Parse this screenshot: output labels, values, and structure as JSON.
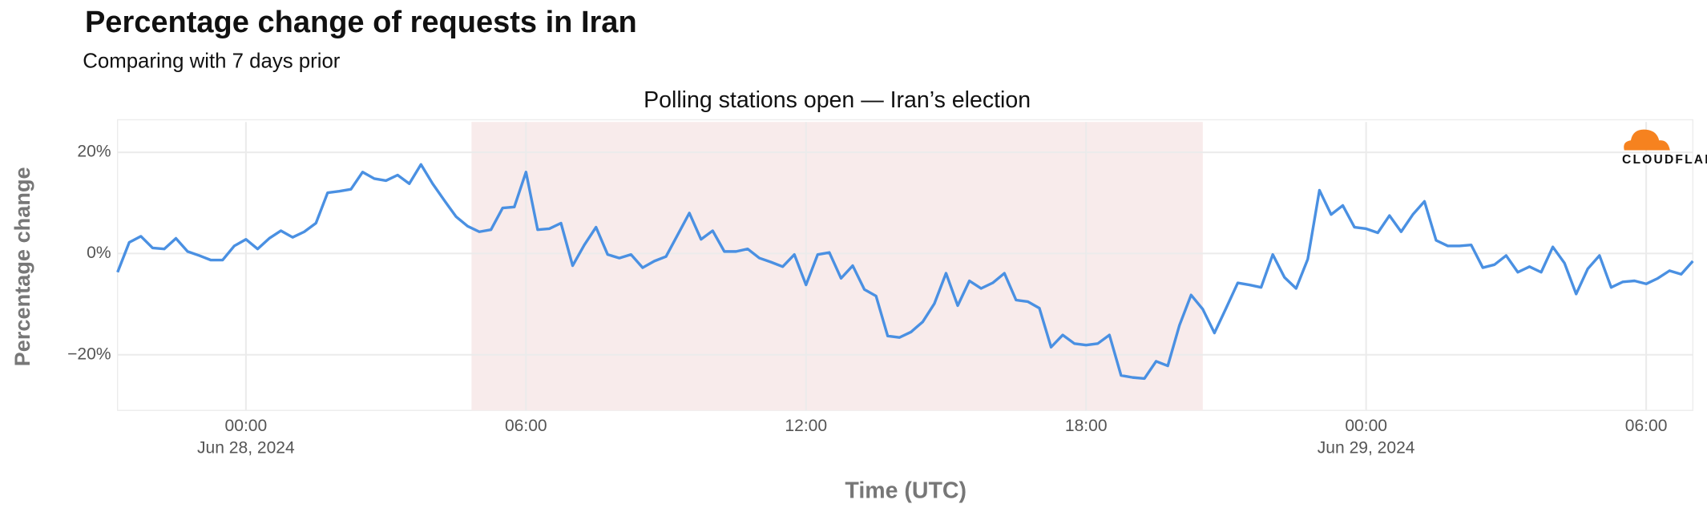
{
  "chart_data": {
    "type": "line",
    "title": "Percentage change of requests in Iran",
    "subtitle": "Comparing with 7 days prior",
    "ylabel": "Percentage change",
    "xlabel": "Time (UTC)",
    "logo": "CLOUDFLARE",
    "annotations": [
      {
        "text": "Polling stations open — Iran’s election",
        "x": [
          "2024-06-28T04:50",
          "2024-06-28T20:30"
        ],
        "color": "#f8ebeb"
      }
    ],
    "xlim": [
      "2024-06-27T21:15",
      "2024-06-29T07:00"
    ],
    "xticks": [
      {
        "value": "2024-06-28T00:00",
        "label": "00:00",
        "date": "Jun 28, 2024"
      },
      {
        "value": "2024-06-28T06:00",
        "label": "06:00"
      },
      {
        "value": "2024-06-28T12:00",
        "label": "12:00"
      },
      {
        "value": "2024-06-28T18:00",
        "label": "18:00"
      },
      {
        "value": "2024-06-29T00:00",
        "label": "00:00",
        "date": "Jun 29, 2024"
      },
      {
        "value": "2024-06-29T06:00",
        "label": "06:00"
      }
    ],
    "ylim": [
      -31,
      26
    ],
    "yticks": [
      {
        "value": -20,
        "label": "−20%"
      },
      {
        "value": 0,
        "label": "0%"
      },
      {
        "value": 20,
        "label": "20%"
      }
    ],
    "grid": true,
    "x": [
      "2024-06-27T21:15",
      "2024-06-27T21:30",
      "2024-06-27T21:45",
      "2024-06-27T22:00",
      "2024-06-27T22:15",
      "2024-06-27T22:30",
      "2024-06-27T22:45",
      "2024-06-27T23:00",
      "2024-06-27T23:15",
      "2024-06-27T23:30",
      "2024-06-27T23:45",
      "2024-06-28T00:00",
      "2024-06-28T00:15",
      "2024-06-28T00:30",
      "2024-06-28T00:45",
      "2024-06-28T01:00",
      "2024-06-28T01:15",
      "2024-06-28T01:30",
      "2024-06-28T01:45",
      "2024-06-28T02:00",
      "2024-06-28T02:15",
      "2024-06-28T02:30",
      "2024-06-28T02:45",
      "2024-06-28T03:00",
      "2024-06-28T03:15",
      "2024-06-28T03:30",
      "2024-06-28T03:45",
      "2024-06-28T04:00",
      "2024-06-28T04:15",
      "2024-06-28T04:30",
      "2024-06-28T04:45",
      "2024-06-28T05:00",
      "2024-06-28T05:15",
      "2024-06-28T05:30",
      "2024-06-28T05:45",
      "2024-06-28T06:00",
      "2024-06-28T06:15",
      "2024-06-28T06:30",
      "2024-06-28T06:45",
      "2024-06-28T07:00",
      "2024-06-28T07:15",
      "2024-06-28T07:30",
      "2024-06-28T07:45",
      "2024-06-28T08:00",
      "2024-06-28T08:15",
      "2024-06-28T08:30",
      "2024-06-28T08:45",
      "2024-06-28T09:00",
      "2024-06-28T09:15",
      "2024-06-28T09:30",
      "2024-06-28T09:45",
      "2024-06-28T10:00",
      "2024-06-28T10:15",
      "2024-06-28T10:30",
      "2024-06-28T10:45",
      "2024-06-28T11:00",
      "2024-06-28T11:15",
      "2024-06-28T11:30",
      "2024-06-28T11:45",
      "2024-06-28T12:00",
      "2024-06-28T12:15",
      "2024-06-28T12:30",
      "2024-06-28T12:45",
      "2024-06-28T13:00",
      "2024-06-28T13:15",
      "2024-06-28T13:30",
      "2024-06-28T13:45",
      "2024-06-28T14:00",
      "2024-06-28T14:15",
      "2024-06-28T14:30",
      "2024-06-28T14:45",
      "2024-06-28T15:00",
      "2024-06-28T15:15",
      "2024-06-28T15:30",
      "2024-06-28T15:45",
      "2024-06-28T16:00",
      "2024-06-28T16:15",
      "2024-06-28T16:30",
      "2024-06-28T16:45",
      "2024-06-28T17:00",
      "2024-06-28T17:15",
      "2024-06-28T17:30",
      "2024-06-28T17:45",
      "2024-06-28T18:00",
      "2024-06-28T18:15",
      "2024-06-28T18:30",
      "2024-06-28T18:45",
      "2024-06-28T19:00",
      "2024-06-28T19:15",
      "2024-06-28T19:30",
      "2024-06-28T19:45",
      "2024-06-28T20:00",
      "2024-06-28T20:15",
      "2024-06-28T20:30",
      "2024-06-28T20:45",
      "2024-06-28T21:00",
      "2024-06-28T21:15",
      "2024-06-28T21:30",
      "2024-06-28T21:45",
      "2024-06-28T22:00",
      "2024-06-28T22:15",
      "2024-06-28T22:30",
      "2024-06-28T22:45",
      "2024-06-28T23:00",
      "2024-06-28T23:15",
      "2024-06-28T23:30",
      "2024-06-28T23:45",
      "2024-06-29T00:00",
      "2024-06-29T00:15",
      "2024-06-29T00:30",
      "2024-06-29T00:45",
      "2024-06-29T01:00",
      "2024-06-29T01:15",
      "2024-06-29T01:30",
      "2024-06-29T01:45",
      "2024-06-29T02:00",
      "2024-06-29T02:15",
      "2024-06-29T02:30",
      "2024-06-29T02:45",
      "2024-06-29T03:00",
      "2024-06-29T03:15",
      "2024-06-29T03:30",
      "2024-06-29T03:45",
      "2024-06-29T04:00",
      "2024-06-29T04:15",
      "2024-06-29T04:30",
      "2024-06-29T04:45",
      "2024-06-29T05:00",
      "2024-06-29T05:15",
      "2024-06-29T05:30",
      "2024-06-29T05:45",
      "2024-06-29T06:00",
      "2024-06-29T06:15",
      "2024-06-29T06:30",
      "2024-06-29T06:45",
      "2024-06-29T07:00"
    ],
    "series": [
      {
        "name": "Percentage change",
        "color": "#4a90e2",
        "values": [
          -3.7,
          2.2,
          3.4,
          1.1,
          0.9,
          3.0,
          0.4,
          -0.4,
          -1.3,
          -1.3,
          1.5,
          2.8,
          0.9,
          3.0,
          4.5,
          3.2,
          4.3,
          6.0,
          12.0,
          12.3,
          12.7,
          16.1,
          14.8,
          14.4,
          15.5,
          13.8,
          17.6,
          13.8,
          10.5,
          7.3,
          5.4,
          4.3,
          4.7,
          9.0,
          9.2,
          16.1,
          4.7,
          4.9,
          6.0,
          -2.4,
          1.7,
          5.2,
          -0.2,
          -0.9,
          -0.2,
          -2.8,
          -1.5,
          -0.6,
          3.7,
          8.0,
          2.8,
          4.5,
          0.4,
          0.4,
          0.9,
          -0.9,
          -1.7,
          -2.6,
          -0.2,
          -6.2,
          -0.2,
          0.2,
          -4.9,
          -2.4,
          -7.1,
          -8.4,
          -16.3,
          -16.6,
          -15.5,
          -13.5,
          -9.9,
          -3.9,
          -10.3,
          -5.4,
          -6.9,
          -5.8,
          -3.9,
          -9.2,
          -9.5,
          -10.8,
          -18.5,
          -16.1,
          -17.8,
          -18.1,
          -17.8,
          -16.1,
          -24.1,
          -24.5,
          -24.7,
          -21.3,
          -22.2,
          -14.2,
          -8.2,
          -11.0,
          -15.7,
          -10.8,
          -5.8,
          -6.2,
          -6.7,
          -0.2,
          -4.7,
          -6.9,
          -1.1,
          12.5,
          7.7,
          9.5,
          5.2,
          4.9,
          4.1,
          7.5,
          4.3,
          7.7,
          10.3,
          2.6,
          1.5,
          1.5,
          1.7,
          -2.8,
          -2.2,
          -0.4,
          -3.7,
          -2.6,
          -3.7,
          1.3,
          -1.9,
          -8.0,
          -3.0,
          -0.4,
          -6.7,
          -5.6,
          -5.4,
          -6.0,
          -4.9,
          -3.4,
          -4.1,
          -1.5
        ]
      }
    ]
  }
}
